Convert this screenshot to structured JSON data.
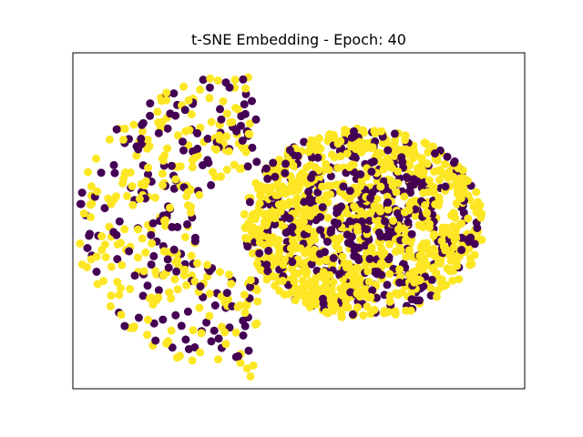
{
  "chart_data": {
    "type": "scatter",
    "title": "t-SNE Embedding -  Epoch: 40",
    "xlabel": "",
    "ylabel": "",
    "grid": false,
    "axis_ticks": false,
    "colors": {
      "class_0": "#440154",
      "class_1": "#fde725"
    },
    "series": [
      {
        "cluster": "crescent",
        "shape": "half-ring",
        "center": [
          0.52,
          0.5
        ],
        "radius_inner": 0.32,
        "radius_outer": 0.86,
        "angle_range_deg": [
          93,
          268
        ],
        "n_points": 430,
        "class_1_fraction": 0.62
      },
      {
        "cluster": "disc",
        "shape": "ellipse",
        "center": [
          0.6,
          0.5
        ],
        "radius_x": 0.54,
        "radius_y": 0.42,
        "n_points": 1300,
        "class_1_fraction": 0.78
      }
    ]
  }
}
